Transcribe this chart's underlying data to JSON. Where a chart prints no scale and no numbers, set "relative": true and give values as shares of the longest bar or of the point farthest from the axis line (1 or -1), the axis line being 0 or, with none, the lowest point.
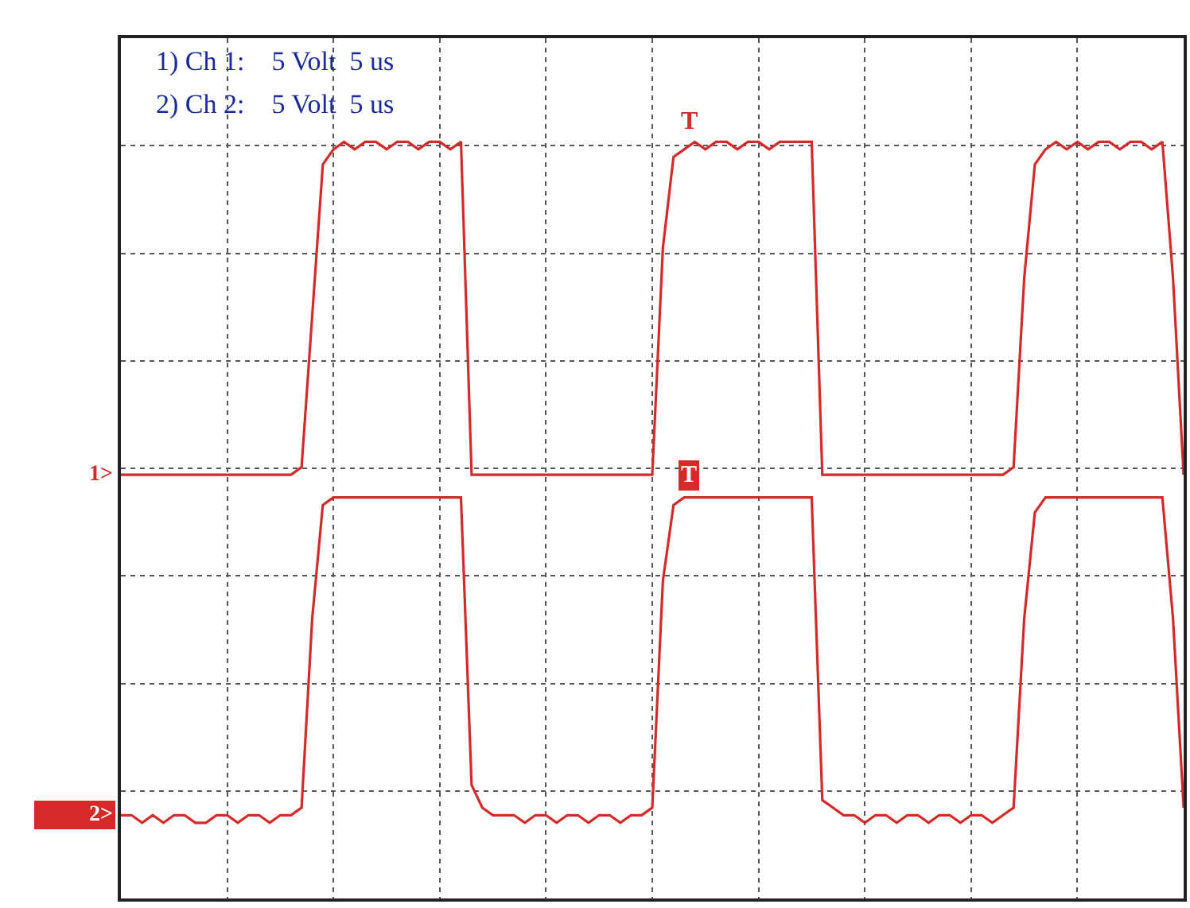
{
  "chart_data": {
    "type": "line",
    "relative": true,
    "grid": true,
    "marker": "none",
    "line_style": "solid",
    "categories": [
      null,
      null,
      null,
      null,
      null,
      null,
      null,
      null,
      null,
      null,
      null,
      null,
      null,
      null,
      null,
      null,
      null,
      null,
      null,
      null,
      null,
      null,
      null,
      null,
      null,
      null,
      null,
      null,
      null,
      null,
      null,
      null,
      null,
      null,
      null,
      null,
      null,
      null,
      null,
      null,
      null,
      null,
      null,
      null,
      null,
      null,
      null,
      null,
      null,
      null,
      null,
      null,
      null,
      null,
      null,
      null,
      null,
      null,
      null,
      null,
      null,
      null,
      null,
      null,
      null,
      null,
      null,
      null,
      null,
      null,
      null,
      null,
      null,
      null,
      null,
      null,
      null,
      null,
      null,
      null,
      null,
      null,
      null,
      null,
      null,
      null,
      null,
      null,
      null,
      null,
      null,
      null,
      null,
      null,
      null,
      null,
      null,
      null,
      null,
      null,
      null
    ],
    "series": [
      {
        "color": "#d42a2a",
        "values": [
          0.56,
          0.56,
          0.56,
          0.56,
          0.56,
          0.56,
          0.56,
          0.56,
          0.56,
          0.56,
          0.56,
          0.56,
          0.56,
          0.56,
          0.56,
          0.56,
          0.56,
          0.57,
          0.77,
          0.97,
          0.99,
          1.0,
          0.99,
          1.0,
          1.0,
          0.99,
          1.0,
          1.0,
          0.99,
          1.0,
          1.0,
          0.99,
          1.0,
          0.56,
          0.56,
          0.56,
          0.56,
          0.56,
          0.56,
          0.56,
          0.56,
          0.56,
          0.56,
          0.56,
          0.56,
          0.56,
          0.56,
          0.56,
          0.56,
          0.56,
          0.56,
          0.86,
          0.98,
          0.99,
          1.0,
          0.99,
          1.0,
          1.0,
          0.99,
          1.0,
          1.0,
          0.99,
          1.0,
          1.0,
          1.0,
          1.0,
          0.56,
          0.56,
          0.56,
          0.56,
          0.56,
          0.56,
          0.56,
          0.56,
          0.56,
          0.56,
          0.56,
          0.56,
          0.56,
          0.56,
          0.56,
          0.56,
          0.56,
          0.56,
          0.57,
          0.82,
          0.97,
          0.99,
          1.0,
          0.99,
          1.0,
          0.99,
          1.0,
          1.0,
          0.99,
          1.0,
          1.0,
          0.99,
          1.0,
          0.82,
          0.56
        ]
      },
      {
        "color": "#d42a2a",
        "values": [
          0.11,
          0.11,
          0.1,
          0.11,
          0.1,
          0.11,
          0.11,
          0.1,
          0.1,
          0.11,
          0.11,
          0.1,
          0.11,
          0.11,
          0.1,
          0.11,
          0.11,
          0.12,
          0.37,
          0.52,
          0.53,
          0.53,
          0.53,
          0.53,
          0.53,
          0.53,
          0.53,
          0.53,
          0.53,
          0.53,
          0.53,
          0.53,
          0.53,
          0.15,
          0.12,
          0.11,
          0.11,
          0.11,
          0.1,
          0.11,
          0.11,
          0.1,
          0.11,
          0.11,
          0.1,
          0.11,
          0.11,
          0.1,
          0.11,
          0.11,
          0.12,
          0.42,
          0.52,
          0.53,
          0.53,
          0.53,
          0.53,
          0.53,
          0.53,
          0.53,
          0.53,
          0.53,
          0.53,
          0.53,
          0.53,
          0.53,
          0.13,
          0.12,
          0.11,
          0.11,
          0.1,
          0.11,
          0.11,
          0.1,
          0.11,
          0.11,
          0.1,
          0.11,
          0.11,
          0.1,
          0.11,
          0.11,
          0.1,
          0.11,
          0.12,
          0.37,
          0.51,
          0.53,
          0.53,
          0.53,
          0.53,
          0.53,
          0.53,
          0.53,
          0.53,
          0.53,
          0.53,
          0.53,
          0.53,
          0.37,
          0.12
        ]
      }
    ],
    "annotations": [
      "1) Ch 1:    5 Volt  5 us",
      "2) Ch 2:    5 Volt  5 us",
      "1>",
      "2>",
      "T",
      "T"
    ]
  }
}
